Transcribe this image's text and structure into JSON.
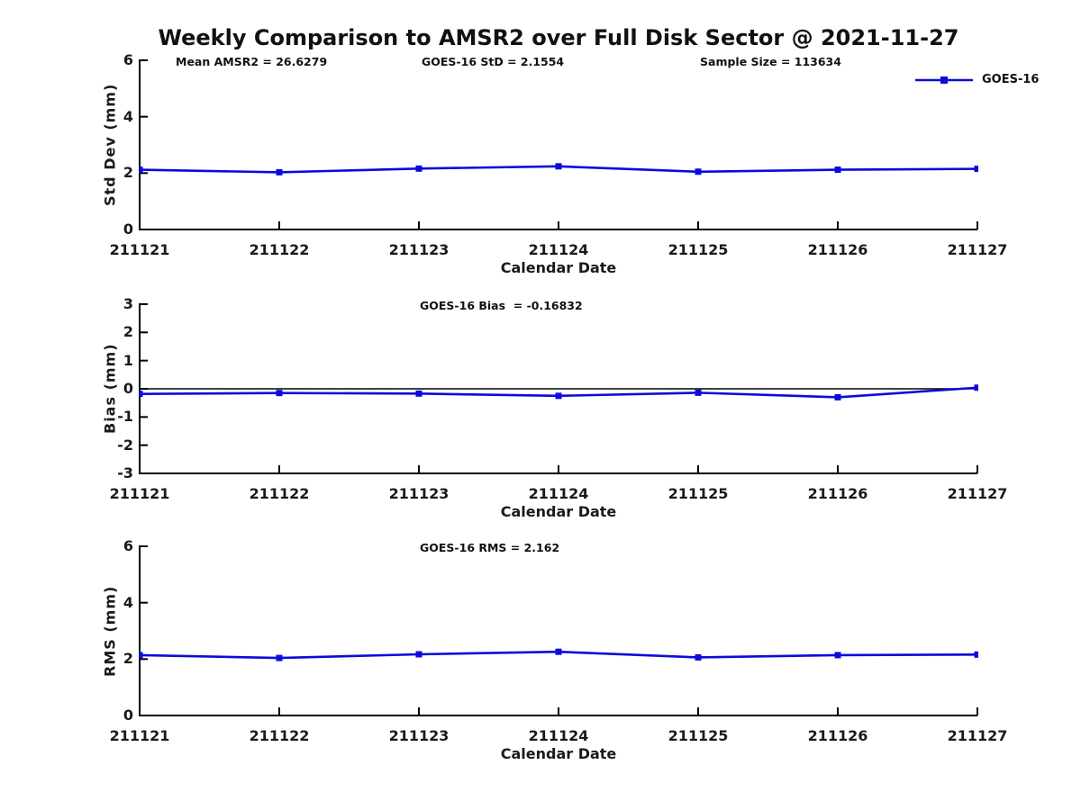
{
  "title": "Weekly Comparison to AMSR2 over Full Disk Sector @ 2021-11-27",
  "colors": {
    "line": "#0b0bdb",
    "axis": "#000000",
    "zero_line": "#000000",
    "text": "#1a1a1a"
  },
  "legend": {
    "label": "GOES-16"
  },
  "chart_data": [
    {
      "type": "line",
      "ylabel": "Std Dev (mm)",
      "xlabel": "Calendar Date",
      "ylim": [
        0,
        6
      ],
      "yticks": [
        "6",
        "4",
        "2",
        "0"
      ],
      "x": [
        "211121",
        "211122",
        "211123",
        "211124",
        "211125",
        "211126",
        "211127"
      ],
      "annotations": [
        "Mean AMSR2 = 26.6279",
        "GOES-16 StD = 2.1554",
        "Sample Size = 113634"
      ],
      "zero_line": false,
      "grid": false,
      "legend_position": "top-right",
      "series": [
        {
          "name": "GOES-16",
          "values": [
            2.12,
            2.03,
            2.16,
            2.24,
            2.05,
            2.12,
            2.15
          ]
        }
      ]
    },
    {
      "type": "line",
      "ylabel": "Bias (mm)",
      "xlabel": "Calendar Date",
      "ylim": [
        -3,
        3
      ],
      "yticks": [
        "3",
        "2",
        "1",
        "0",
        "-1",
        "-2",
        "-3"
      ],
      "x": [
        "211121",
        "211122",
        "211123",
        "211124",
        "211125",
        "211126",
        "211127"
      ],
      "annotations": [
        "GOES-16 Bias  = -0.16832"
      ],
      "zero_line": true,
      "grid": false,
      "series": [
        {
          "name": "GOES-16",
          "values": [
            -0.18,
            -0.15,
            -0.17,
            -0.25,
            -0.14,
            -0.3,
            0.04
          ]
        }
      ]
    },
    {
      "type": "line",
      "ylabel": "RMS (mm)",
      "xlabel": "Calendar Date",
      "ylim": [
        0,
        6
      ],
      "yticks": [
        "6",
        "4",
        "2",
        "0"
      ],
      "x": [
        "211121",
        "211122",
        "211123",
        "211124",
        "211125",
        "211126",
        "211127"
      ],
      "annotations": [
        "GOES-16 RMS = 2.162"
      ],
      "zero_line": false,
      "grid": false,
      "series": [
        {
          "name": "GOES-16",
          "values": [
            2.14,
            2.04,
            2.17,
            2.26,
            2.06,
            2.14,
            2.16
          ]
        }
      ]
    }
  ]
}
